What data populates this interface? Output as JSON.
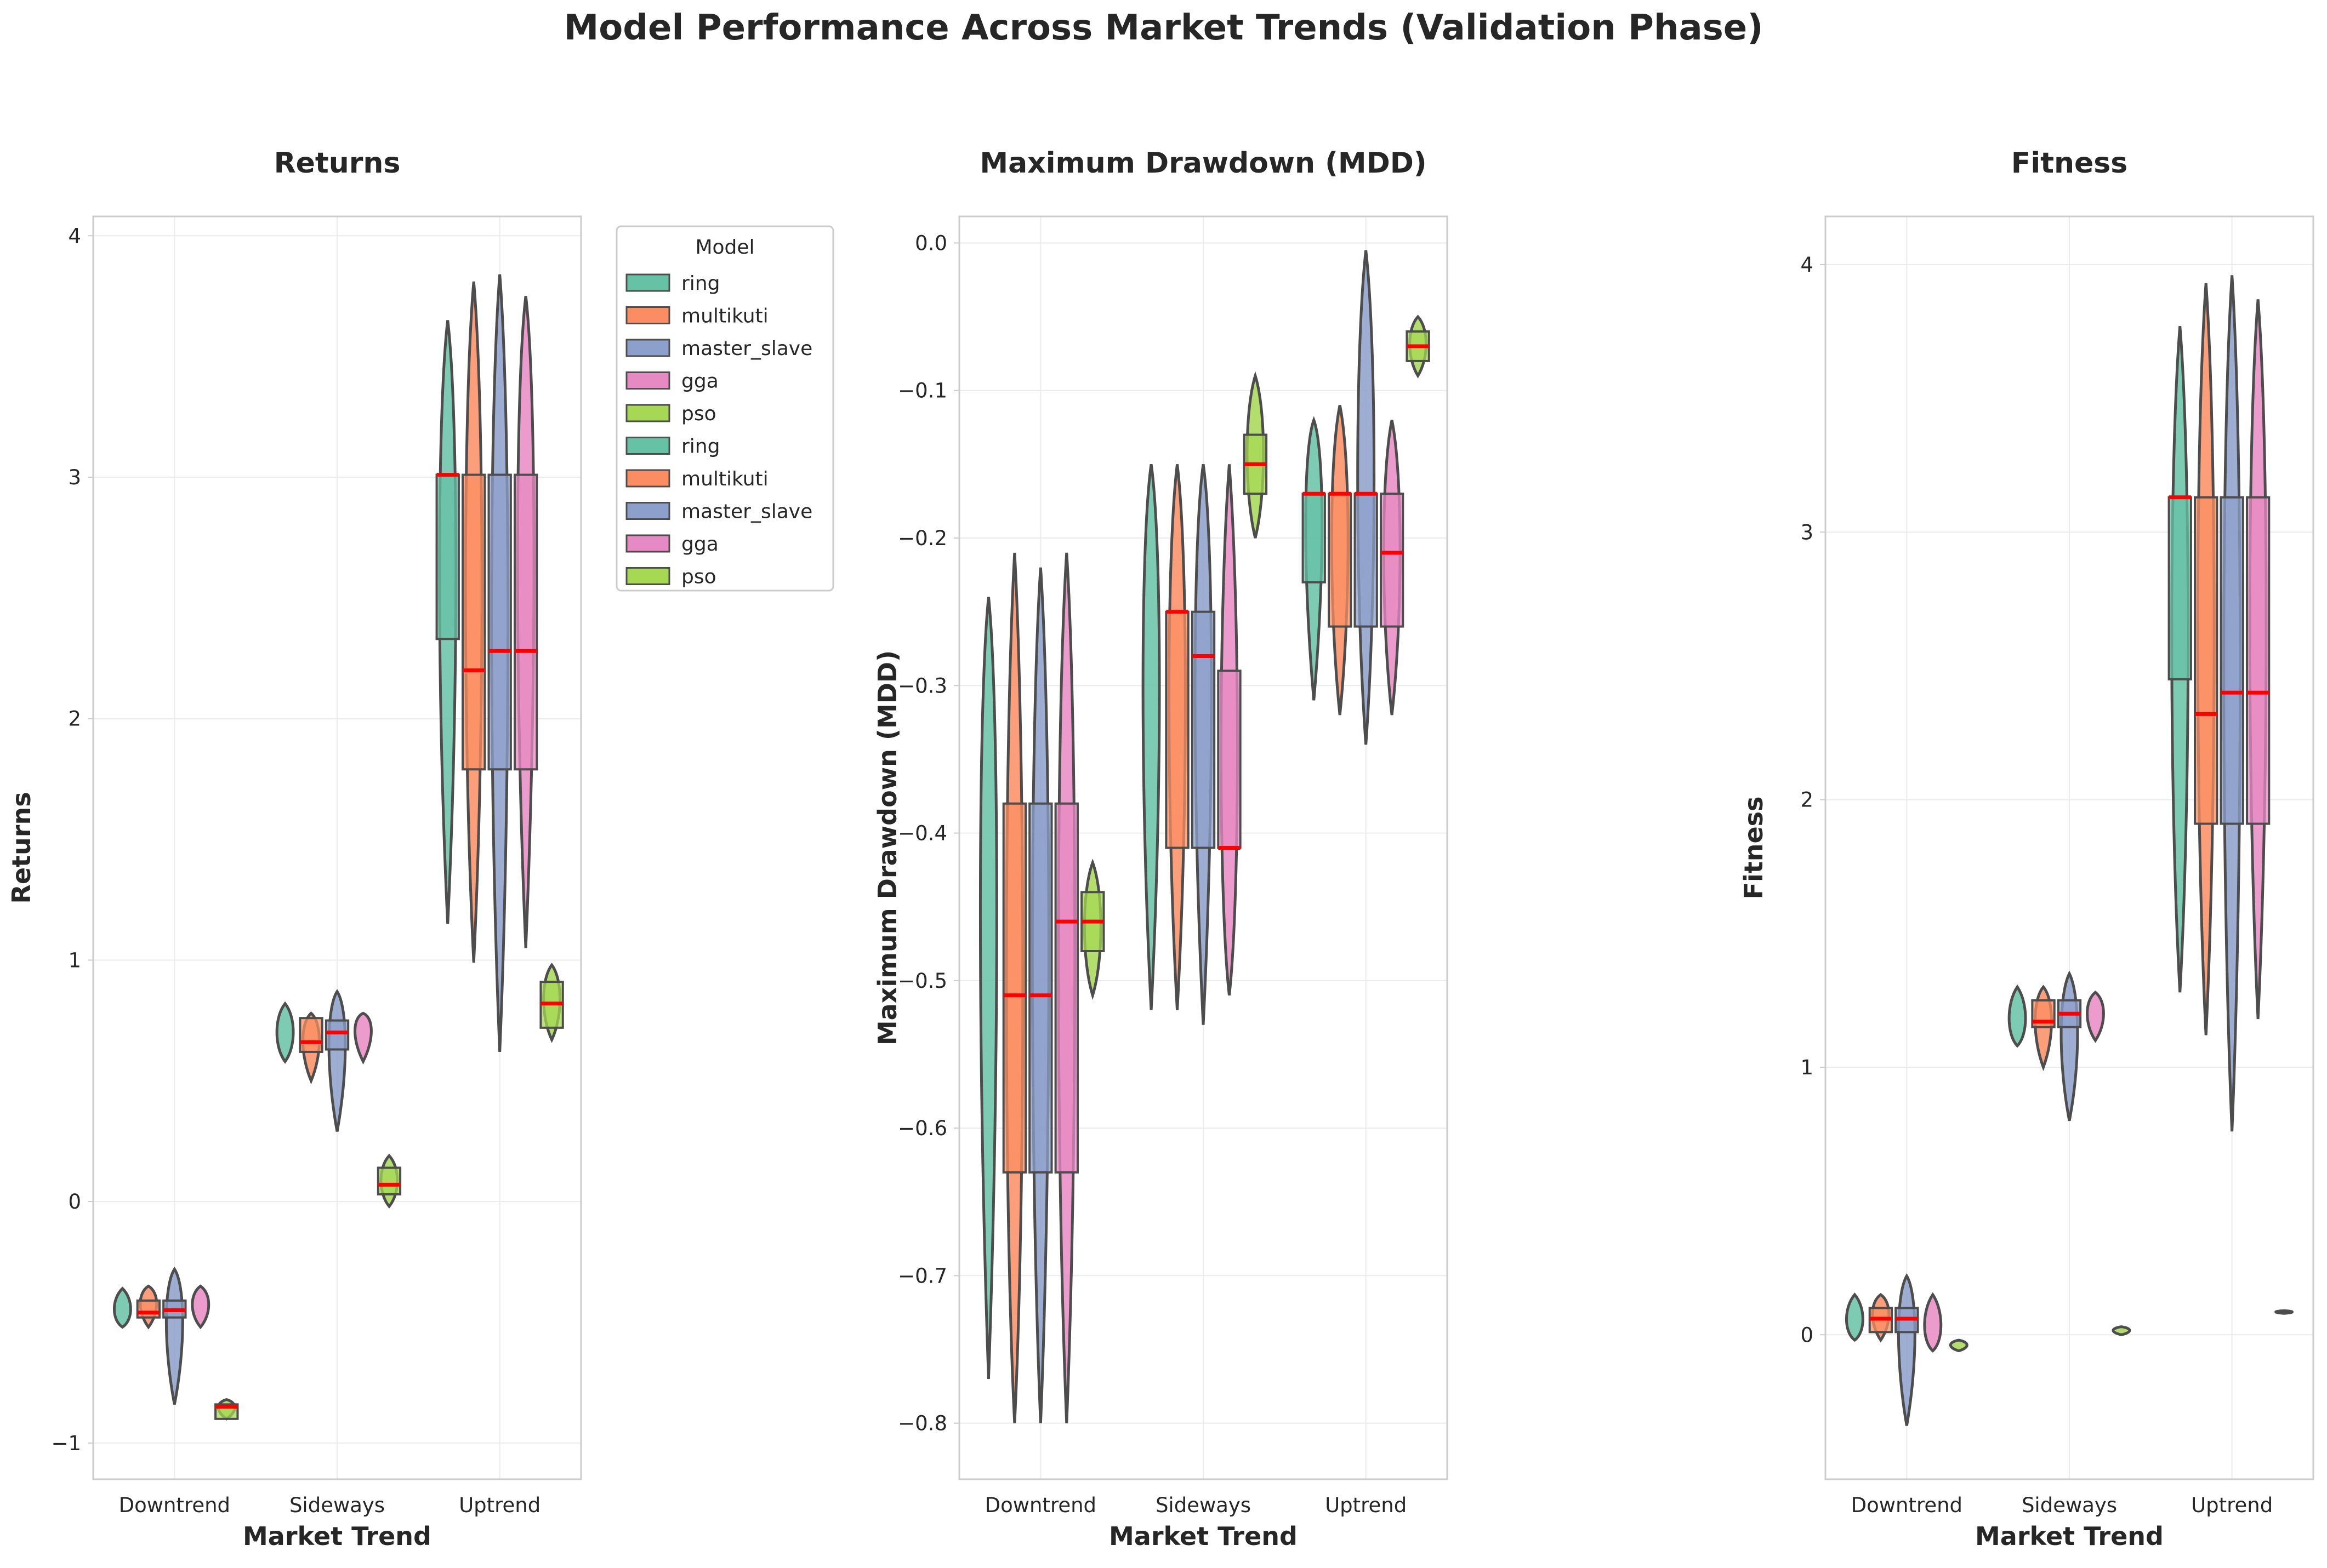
{
  "title": "Model Performance Across Market Trends (Validation Phase)",
  "colors": {
    "ring": "#66c2a5",
    "multikuti": "#fc8d62",
    "master_slave": "#8da0cb",
    "gga": "#e78ac3",
    "pso": "#a6d854",
    "median_line": "#ff0000",
    "outline": "#4d4d4d"
  },
  "legend": {
    "title": "Model",
    "placement": "upper right, outside returns panel",
    "entries": [
      "ring",
      "multikuti",
      "master_slave",
      "gga",
      "pso",
      "ring",
      "multikuti",
      "master_slave",
      "gga",
      "pso"
    ],
    "entry_colors": [
      "ring",
      "multikuti",
      "master_slave",
      "gga",
      "pso",
      "ring",
      "multikuti",
      "master_slave",
      "gga",
      "pso"
    ]
  },
  "chart_data": [
    {
      "type": "violin+box",
      "title": "Returns",
      "xlabel": "Market Trend",
      "ylabel": "Returns",
      "categories": [
        "Downtrend",
        "Sideways",
        "Uptrend"
      ],
      "ylim": [
        -1.15,
        4.08
      ],
      "yticks": [
        -1,
        0,
        1,
        2,
        3,
        4
      ],
      "ytick_labels": [
        "−1",
        "0",
        "1",
        "2",
        "3",
        "4"
      ],
      "grid": true,
      "series": [
        {
          "name": "ring",
          "violins": [
            [
              -0.52,
              -0.36,
              -0.47
            ],
            [
              0.58,
              0.82,
              0.68
            ],
            [
              1.15,
              3.65,
              2.7
            ]
          ],
          "boxes": [
            null,
            null,
            [
              2.33,
              3.01,
              3.01
            ]
          ]
        },
        {
          "name": "multikuti",
          "violins": [
            [
              -0.52,
              -0.35,
              -0.42
            ],
            [
              0.5,
              0.78,
              0.68
            ],
            [
              0.99,
              3.81,
              2.5
            ]
          ],
          "boxes": [
            [
              -0.48,
              -0.41,
              -0.46
            ],
            [
              0.62,
              0.76,
              0.66
            ],
            [
              1.79,
              3.01,
              2.2
            ]
          ]
        },
        {
          "name": "master_slave",
          "violins": [
            [
              -0.84,
              -0.28,
              -0.45
            ],
            [
              0.29,
              0.87,
              0.7
            ],
            [
              0.62,
              3.84,
              2.4
            ]
          ],
          "boxes": [
            [
              -0.48,
              -0.41,
              -0.45
            ],
            [
              0.63,
              0.75,
              0.7
            ],
            [
              1.79,
              3.01,
              2.28
            ]
          ]
        },
        {
          "name": "gga",
          "violins": [
            [
              -0.52,
              -0.35,
              -0.43
            ],
            [
              0.58,
              0.78,
              0.73
            ],
            [
              1.05,
              3.75,
              2.8
            ]
          ],
          "boxes": [
            null,
            null,
            [
              1.79,
              3.01,
              2.28
            ]
          ]
        },
        {
          "name": "pso",
          "violins": [
            [
              -0.9,
              -0.82,
              -0.85
            ],
            [
              -0.02,
              0.19,
              0.07
            ],
            [
              0.67,
              0.98,
              0.83
            ]
          ],
          "boxes": [
            [
              -0.9,
              -0.84,
              -0.85
            ],
            [
              0.03,
              0.14,
              0.07
            ],
            [
              0.72,
              0.91,
              0.82
            ]
          ]
        }
      ]
    },
    {
      "type": "violin+box",
      "title": "Maximum Drawdown (MDD)",
      "xlabel": "Market Trend",
      "ylabel": "Maximum Drawdown (MDD)",
      "categories": [
        "Downtrend",
        "Sideways",
        "Uptrend"
      ],
      "ylim": [
        -0.838,
        0.018
      ],
      "yticks": [
        0.0,
        -0.1,
        -0.2,
        -0.3,
        -0.4,
        -0.5,
        -0.6,
        -0.7,
        -0.8
      ],
      "ytick_labels": [
        "0.0",
        "−0.1",
        "−0.2",
        "−0.3",
        "−0.4",
        "−0.5",
        "−0.6",
        "−0.7",
        "−0.8"
      ],
      "grid": true,
      "series": [
        {
          "name": "ring",
          "violins": [
            [
              -0.77,
              -0.24,
              -0.42
            ],
            [
              -0.52,
              -0.15,
              -0.28
            ],
            [
              -0.31,
              -0.12,
              -0.17
            ]
          ],
          "boxes": [
            null,
            null,
            [
              -0.23,
              -0.17,
              -0.17
            ]
          ]
        },
        {
          "name": "multikuti",
          "violins": [
            [
              -0.8,
              -0.21,
              -0.55
            ],
            [
              -0.52,
              -0.15,
              -0.3
            ],
            [
              -0.32,
              -0.11,
              -0.2
            ]
          ],
          "boxes": [
            [
              -0.63,
              -0.38,
              -0.51
            ],
            [
              -0.41,
              -0.25,
              -0.25
            ],
            [
              -0.26,
              -0.17,
              -0.17
            ]
          ]
        },
        {
          "name": "master_slave",
          "violins": [
            [
              -0.8,
              -0.22,
              -0.5
            ],
            [
              -0.53,
              -0.15,
              -0.28
            ],
            [
              -0.34,
              -0.005,
              -0.17
            ]
          ],
          "boxes": [
            [
              -0.63,
              -0.38,
              -0.51
            ],
            [
              -0.41,
              -0.25,
              -0.28
            ],
            [
              -0.26,
              -0.17,
              -0.17
            ]
          ]
        },
        {
          "name": "gga",
          "violins": [
            [
              -0.8,
              -0.21,
              -0.5
            ],
            [
              -0.51,
              -0.15,
              -0.4
            ],
            [
              -0.32,
              -0.12,
              -0.21
            ]
          ],
          "boxes": [
            [
              -0.63,
              -0.38,
              -0.46
            ],
            [
              -0.41,
              -0.29,
              -0.41
            ],
            [
              -0.26,
              -0.17,
              -0.21
            ]
          ]
        },
        {
          "name": "pso",
          "violins": [
            [
              -0.51,
              -0.42,
              -0.47
            ],
            [
              -0.2,
              -0.09,
              -0.15
            ],
            [
              -0.09,
              -0.05,
              -0.07
            ]
          ],
          "boxes": [
            [
              -0.48,
              -0.44,
              -0.46
            ],
            [
              -0.17,
              -0.13,
              -0.15
            ],
            [
              -0.08,
              -0.06,
              -0.07
            ]
          ]
        }
      ]
    },
    {
      "type": "violin+box",
      "title": "Fitness",
      "xlabel": "Market Trend",
      "ylabel": "Fitness",
      "categories": [
        "Downtrend",
        "Sideways",
        "Uptrend"
      ],
      "ylim": [
        -0.54,
        4.18
      ],
      "yticks": [
        0,
        1,
        2,
        3,
        4
      ],
      "ytick_labels": [
        "0",
        "1",
        "2",
        "3",
        "4"
      ],
      "grid": true,
      "series": [
        {
          "name": "ring",
          "violins": [
            [
              -0.02,
              0.15,
              0.03
            ],
            [
              1.08,
              1.3,
              1.15
            ],
            [
              1.28,
              3.77,
              2.5
            ]
          ],
          "boxes": [
            null,
            null,
            [
              2.45,
              3.13,
              3.13
            ]
          ]
        },
        {
          "name": "multikuti",
          "violins": [
            [
              -0.02,
              0.15,
              0.08
            ],
            [
              1.0,
              1.3,
              1.18
            ],
            [
              1.12,
              3.93,
              2.5
            ]
          ],
          "boxes": [
            [
              0.01,
              0.1,
              0.06
            ],
            [
              1.15,
              1.25,
              1.17
            ],
            [
              1.91,
              3.13,
              2.32
            ]
          ]
        },
        {
          "name": "master_slave",
          "violins": [
            [
              -0.34,
              0.22,
              0.05
            ],
            [
              0.8,
              1.35,
              1.15
            ],
            [
              0.76,
              3.96,
              2.4
            ]
          ],
          "boxes": [
            [
              0.01,
              0.1,
              0.06
            ],
            [
              1.15,
              1.25,
              1.2
            ],
            [
              1.91,
              3.13,
              2.4
            ]
          ]
        },
        {
          "name": "gga",
          "violins": [
            [
              -0.06,
              0.15,
              0.0
            ],
            [
              1.1,
              1.28,
              1.2
            ],
            [
              1.18,
              3.87,
              2.6
            ]
          ],
          "boxes": [
            null,
            null,
            [
              1.91,
              3.13,
              2.4
            ]
          ]
        },
        {
          "name": "pso",
          "violins": [
            [
              -0.06,
              -0.02,
              -0.04
            ],
            [
              0.0,
              0.03,
              0.015
            ],
            [
              0.08,
              0.09,
              0.085
            ]
          ],
          "boxes": [
            null,
            null,
            null
          ]
        }
      ]
    }
  ]
}
